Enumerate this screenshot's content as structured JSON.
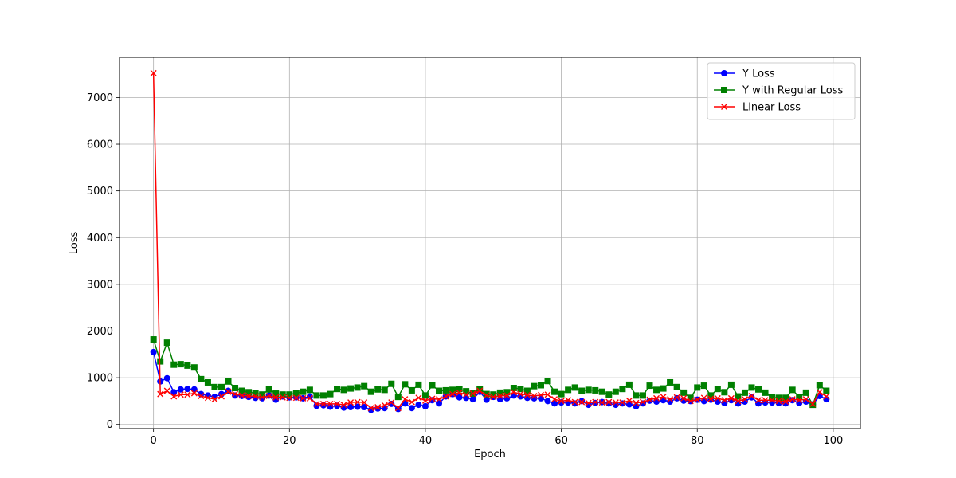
{
  "chart_data": {
    "type": "line",
    "title": "",
    "xlabel": "Epoch",
    "ylabel": "Loss",
    "xlim": [
      -5,
      104
    ],
    "ylim": [
      -90,
      7860
    ],
    "xticks": [
      0,
      20,
      40,
      60,
      80,
      100
    ],
    "yticks": [
      0,
      1000,
      2000,
      3000,
      4000,
      5000,
      6000,
      7000
    ],
    "grid": true,
    "legend_position": "top-right",
    "series": [
      {
        "name": "Y Loss",
        "color": "#0000ff",
        "marker": "circle",
        "values": [
          1550,
          920,
          990,
          690,
          750,
          760,
          750,
          650,
          620,
          590,
          650,
          720,
          620,
          610,
          590,
          570,
          560,
          620,
          530,
          600,
          580,
          580,
          560,
          600,
          400,
          410,
          380,
          400,
          360,
          370,
          380,
          370,
          310,
          340,
          350,
          440,
          330,
          450,
          350,
          420,
          390,
          520,
          450,
          600,
          650,
          580,
          570,
          540,
          700,
          530,
          590,
          540,
          560,
          620,
          600,
          570,
          560,
          560,
          500,
          450,
          470,
          470,
          450,
          500,
          420,
          460,
          480,
          450,
          420,
          450,
          430,
          390,
          450,
          510,
          490,
          520,
          490,
          560,
          510,
          500,
          530,
          500,
          530,
          490,
          460,
          520,
          450,
          490,
          580,
          450,
          470,
          470,
          460,
          450,
          520,
          460,
          490,
          430,
          610,
          540
        ]
      },
      {
        "name": "Y with Regular Loss",
        "color": "#008000",
        "marker": "square",
        "values": [
          1820,
          1350,
          1750,
          1280,
          1290,
          1260,
          1220,
          970,
          900,
          800,
          800,
          920,
          780,
          720,
          690,
          670,
          640,
          750,
          660,
          640,
          640,
          670,
          700,
          740,
          620,
          620,
          650,
          760,
          740,
          770,
          790,
          820,
          700,
          750,
          740,
          870,
          590,
          860,
          730,
          850,
          620,
          840,
          720,
          730,
          740,
          760,
          710,
          660,
          760,
          650,
          640,
          680,
          690,
          780,
          760,
          720,
          820,
          840,
          930,
          700,
          650,
          740,
          790,
          720,
          740,
          730,
          700,
          640,
          700,
          760,
          850,
          620,
          620,
          830,
          740,
          770,
          900,
          800,
          680,
          570,
          790,
          830,
          620,
          760,
          690,
          850,
          600,
          680,
          790,
          750,
          680,
          580,
          570,
          570,
          740,
          590,
          680,
          420,
          840,
          720
        ]
      },
      {
        "name": "Linear Loss",
        "color": "#ff0000",
        "marker": "x",
        "values": [
          7520,
          650,
          720,
          600,
          640,
          640,
          670,
          610,
          570,
          540,
          600,
          700,
          650,
          620,
          610,
          600,
          580,
          610,
          580,
          580,
          570,
          570,
          560,
          560,
          440,
          440,
          440,
          440,
          420,
          470,
          480,
          470,
          350,
          370,
          410,
          470,
          350,
          540,
          480,
          570,
          510,
          550,
          540,
          600,
          650,
          680,
          640,
          660,
          720,
          620,
          590,
          610,
          620,
          690,
          650,
          630,
          610,
          630,
          640,
          540,
          500,
          520,
          480,
          480,
          460,
          480,
          470,
          480,
          470,
          470,
          510,
          460,
          480,
          530,
          560,
          590,
          540,
          580,
          560,
          500,
          530,
          570,
          550,
          560,
          520,
          560,
          500,
          540,
          610,
          520,
          520,
          520,
          500,
          490,
          540,
          520,
          540,
          440,
          690,
          600
        ]
      }
    ]
  }
}
